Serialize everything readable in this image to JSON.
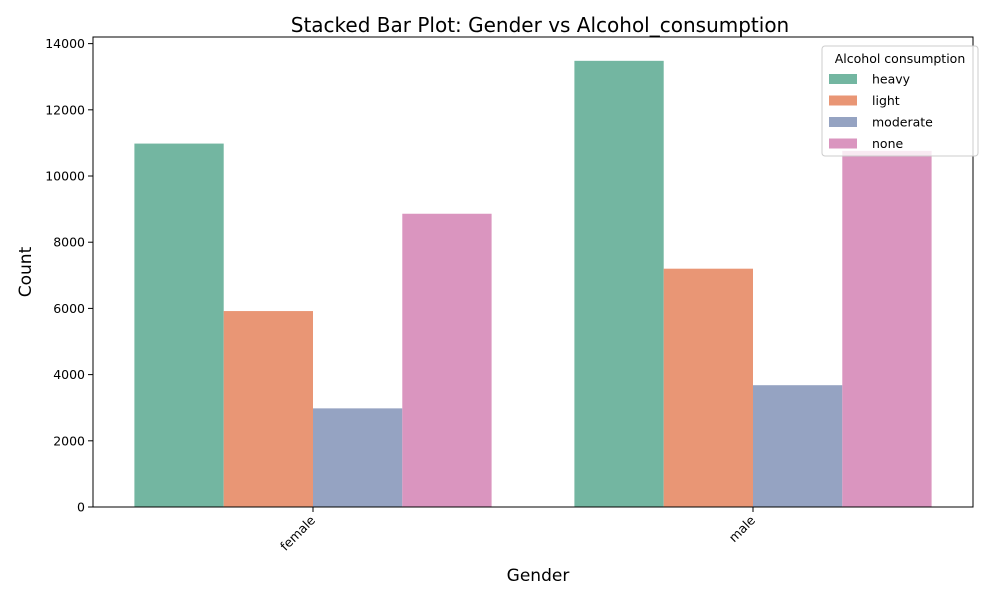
{
  "chart_data": {
    "type": "bar",
    "title": "Stacked Bar Plot: Gender vs Alcohol_consumption",
    "xlabel": "Gender",
    "ylabel": "Count",
    "categories": [
      "female",
      "male"
    ],
    "ylim": [
      0,
      14200
    ],
    "yticks": [
      0,
      2000,
      4000,
      6000,
      8000,
      10000,
      12000,
      14000
    ],
    "tick_rotation_deg": 45,
    "grid": false,
    "legend": {
      "title": "Alcohol consumption",
      "position": "top-right"
    },
    "series": [
      {
        "name": "heavy",
        "color": "#73b6a1",
        "values": [
          10980,
          13480
        ]
      },
      {
        "name": "light",
        "color": "#e99675",
        "values": [
          5920,
          7200
        ]
      },
      {
        "name": "moderate",
        "color": "#95a3c2",
        "values": [
          2980,
          3680
        ]
      },
      {
        "name": "none",
        "color": "#da95bf",
        "values": [
          8860,
          10760
        ]
      }
    ]
  }
}
